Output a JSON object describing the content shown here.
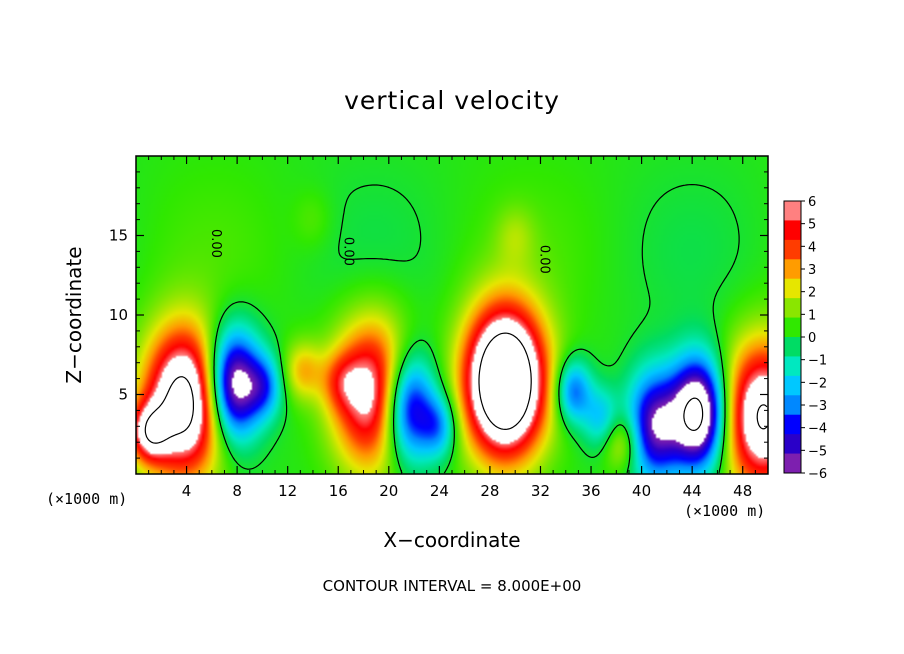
{
  "chart_data": {
    "type": "heatmap",
    "title": "vertical velocity",
    "xlabel": "X−coordinate",
    "ylabel": "Z−coordinate",
    "x_unit_label": "(×1000 m)",
    "x_ticks": [
      "4",
      "8",
      "12",
      "16",
      "20",
      "24",
      "28",
      "32",
      "36",
      "40",
      "44",
      "48"
    ],
    "y_ticks": [
      "5",
      "10",
      "15"
    ],
    "xlim": [
      0,
      50
    ],
    "ylim": [
      0,
      20
    ],
    "footer": "CONTOUR INTERVAL = 8.000E+00",
    "colorbar": {
      "ticks": [
        "6",
        "5",
        "4",
        "3",
        "2",
        "1",
        "0",
        "−1",
        "−2",
        "−3",
        "−4",
        "−5",
        "−6"
      ],
      "range": [
        -6,
        6
      ]
    },
    "contour_labels": [
      "0.00",
      "0.00",
      "0.00"
    ],
    "updraft_cores": [
      {
        "x": 3.8,
        "z": 4.5,
        "peak": 9
      },
      {
        "x": 18.8,
        "z": 5.0,
        "peak": 7
      },
      {
        "x": 29.2,
        "z": 5.8,
        "peak": 12
      },
      {
        "x": 49.6,
        "z": 3.6,
        "peak": 8
      },
      {
        "x": 1.0,
        "z": 2.6,
        "peak": 5
      },
      {
        "x": 38.5,
        "z": 2.0,
        "peak": 2.5
      },
      {
        "x": 13.2,
        "z": 6.5,
        "peak": 2.5
      },
      {
        "x": 16.2,
        "z": 5.8,
        "peak": 2.0
      },
      {
        "x": 14.0,
        "z": 16.0,
        "peak": 0.6
      },
      {
        "x": 30.0,
        "z": 15.0,
        "peak": 1.0
      }
    ],
    "downdraft_cores": [
      {
        "x": 7.7,
        "z": 5.6,
        "peak": -8
      },
      {
        "x": 21.5,
        "z": 4.2,
        "peak": -7
      },
      {
        "x": 44.5,
        "z": 3.8,
        "peak": -9
      },
      {
        "x": 41.0,
        "z": 3.0,
        "peak": -6
      },
      {
        "x": 34.6,
        "z": 5.2,
        "peak": -4
      },
      {
        "x": 10.2,
        "z": 5.5,
        "peak": -3
      },
      {
        "x": 24.0,
        "z": 3.0,
        "peak": -3
      },
      {
        "x": 36.8,
        "z": 3.5,
        "peak": -2.5
      }
    ],
    "colors": {
      "scale": [
        "#7d1faf",
        "#2a00c8",
        "#0000ff",
        "#0088ff",
        "#00c8ff",
        "#00e8c0",
        "#00dc64",
        "#30e800",
        "#8ae600",
        "#e6e600",
        "#ff9c00",
        "#ff3c00",
        "#ff0000",
        "#ff8080"
      ],
      "saturation": "#ffffff",
      "contour": "#000000"
    }
  }
}
